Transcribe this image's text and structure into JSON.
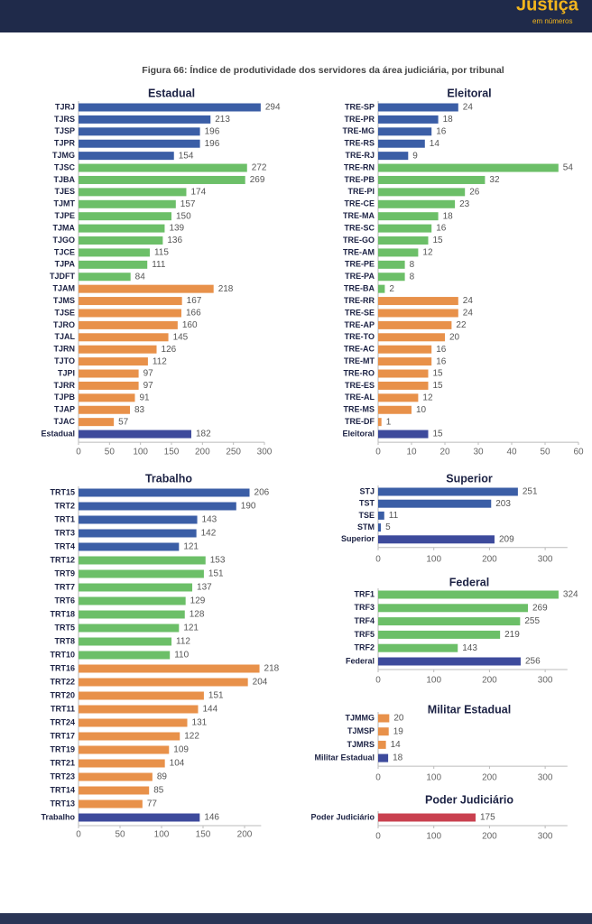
{
  "header": {
    "logo": "Justiça",
    "logo_sub": "em números"
  },
  "figure_title": "Figura 66: Índice de produtividade dos servidores da área judiciária, por tribunal",
  "chart_data": [
    {
      "type": "hbar",
      "title": "Estadual",
      "categories": [
        "TJRJ",
        "TJRS",
        "TJSP",
        "TJPR",
        "TJMG",
        "TJSC",
        "TJBA",
        "TJES",
        "TJMT",
        "TJPE",
        "TJMA",
        "TJGO",
        "TJCE",
        "TJPA",
        "TJDFT",
        "TJAM",
        "TJMS",
        "TJSE",
        "TJRO",
        "TJAL",
        "TJRN",
        "TJTO",
        "TJPI",
        "TJRR",
        "TJPB",
        "TJAP",
        "TJAC",
        "Estadual"
      ],
      "values": [
        294,
        213,
        196,
        196,
        154,
        272,
        269,
        174,
        157,
        150,
        139,
        136,
        115,
        111,
        84,
        218,
        167,
        166,
        160,
        145,
        126,
        112,
        97,
        97,
        91,
        83,
        57,
        182
      ],
      "colors": [
        "#3b5ea6",
        "#3b5ea6",
        "#3b5ea6",
        "#3b5ea6",
        "#3b5ea6",
        "#6cbf68",
        "#6cbf68",
        "#6cbf68",
        "#6cbf68",
        "#6cbf68",
        "#6cbf68",
        "#6cbf68",
        "#6cbf68",
        "#6cbf68",
        "#6cbf68",
        "#e8914a",
        "#e8914a",
        "#e8914a",
        "#e8914a",
        "#e8914a",
        "#e8914a",
        "#e8914a",
        "#e8914a",
        "#e8914a",
        "#e8914a",
        "#e8914a",
        "#e8914a",
        "#3d4a9c"
      ],
      "xlim": [
        0,
        300
      ],
      "xticks": [
        0,
        50,
        100,
        150,
        200,
        250,
        300
      ]
    },
    {
      "type": "hbar",
      "title": "Eleitoral",
      "categories": [
        "TRE-SP",
        "TRE-PR",
        "TRE-MG",
        "TRE-RS",
        "TRE-RJ",
        "TRE-RN",
        "TRE-PB",
        "TRE-PI",
        "TRE-CE",
        "TRE-MA",
        "TRE-SC",
        "TRE-GO",
        "TRE-AM",
        "TRE-PE",
        "TRE-PA",
        "TRE-BA",
        "TRE-RR",
        "TRE-SE",
        "TRE-AP",
        "TRE-TO",
        "TRE-AC",
        "TRE-MT",
        "TRE-RO",
        "TRE-ES",
        "TRE-AL",
        "TRE-MS",
        "TRE-DF",
        "Eleitoral"
      ],
      "values": [
        24,
        18,
        16,
        14,
        9,
        54,
        32,
        26,
        23,
        18,
        16,
        15,
        12,
        8,
        8,
        2,
        24,
        24,
        22,
        20,
        16,
        16,
        15,
        15,
        12,
        10,
        1,
        15
      ],
      "colors": [
        "#3b5ea6",
        "#3b5ea6",
        "#3b5ea6",
        "#3b5ea6",
        "#3b5ea6",
        "#6cbf68",
        "#6cbf68",
        "#6cbf68",
        "#6cbf68",
        "#6cbf68",
        "#6cbf68",
        "#6cbf68",
        "#6cbf68",
        "#6cbf68",
        "#6cbf68",
        "#6cbf68",
        "#e8914a",
        "#e8914a",
        "#e8914a",
        "#e8914a",
        "#e8914a",
        "#e8914a",
        "#e8914a",
        "#e8914a",
        "#e8914a",
        "#e8914a",
        "#e8914a",
        "#3d4a9c"
      ],
      "xlim": [
        0,
        60
      ],
      "xticks": [
        0,
        10,
        20,
        30,
        40,
        50,
        60
      ]
    },
    {
      "type": "hbar",
      "title": "Trabalho",
      "categories": [
        "TRT15",
        "TRT2",
        "TRT1",
        "TRT3",
        "TRT4",
        "TRT12",
        "TRT9",
        "TRT7",
        "TRT6",
        "TRT18",
        "TRT5",
        "TRT8",
        "TRT10",
        "TRT16",
        "TRT22",
        "TRT20",
        "TRT11",
        "TRT24",
        "TRT17",
        "TRT19",
        "TRT21",
        "TRT23",
        "TRT14",
        "TRT13",
        "Trabalho"
      ],
      "values": [
        206,
        190,
        143,
        142,
        121,
        153,
        151,
        137,
        129,
        128,
        121,
        112,
        110,
        218,
        204,
        151,
        144,
        131,
        122,
        109,
        104,
        89,
        85,
        77,
        146
      ],
      "colors": [
        "#3b5ea6",
        "#3b5ea6",
        "#3b5ea6",
        "#3b5ea6",
        "#3b5ea6",
        "#6cbf68",
        "#6cbf68",
        "#6cbf68",
        "#6cbf68",
        "#6cbf68",
        "#6cbf68",
        "#6cbf68",
        "#6cbf68",
        "#e8914a",
        "#e8914a",
        "#e8914a",
        "#e8914a",
        "#e8914a",
        "#e8914a",
        "#e8914a",
        "#e8914a",
        "#e8914a",
        "#e8914a",
        "#e8914a",
        "#3d4a9c"
      ],
      "xlim": [
        0,
        220
      ],
      "xticks": [
        0,
        50,
        100,
        150,
        200
      ]
    },
    {
      "type": "hbar",
      "title": "Superior",
      "categories": [
        "STJ",
        "TST",
        "TSE",
        "STM",
        "Superior"
      ],
      "values": [
        251,
        203,
        11,
        5,
        209
      ],
      "colors": [
        "#3b5ea6",
        "#3b5ea6",
        "#3b5ea6",
        "#3b5ea6",
        "#3d4a9c"
      ],
      "xlim": [
        0,
        340
      ],
      "xticks": [
        0,
        100,
        200,
        300
      ]
    },
    {
      "type": "hbar",
      "title": "Federal",
      "categories": [
        "TRF1",
        "TRF3",
        "TRF4",
        "TRF5",
        "TRF2",
        "Federal"
      ],
      "values": [
        324,
        269,
        255,
        219,
        143,
        256
      ],
      "colors": [
        "#6cbf68",
        "#6cbf68",
        "#6cbf68",
        "#6cbf68",
        "#6cbf68",
        "#3d4a9c"
      ],
      "xlim": [
        0,
        340
      ],
      "xticks": [
        0,
        100,
        200,
        300
      ]
    },
    {
      "type": "hbar",
      "title": "Militar Estadual",
      "categories": [
        "TJMMG",
        "TJMSP",
        "TJMRS",
        "Militar Estadual"
      ],
      "values": [
        20,
        19,
        14,
        18
      ],
      "colors": [
        "#e8914a",
        "#e8914a",
        "#e8914a",
        "#3d4a9c"
      ],
      "xlim": [
        0,
        340
      ],
      "xticks": [
        0,
        100,
        200,
        300
      ]
    },
    {
      "type": "hbar",
      "title": "Poder Judiciário",
      "categories": [
        "Poder Judiciário"
      ],
      "values": [
        175
      ],
      "colors": [
        "#c9404f"
      ],
      "xlim": [
        0,
        340
      ],
      "xticks": [
        0,
        100,
        200,
        300
      ]
    }
  ]
}
